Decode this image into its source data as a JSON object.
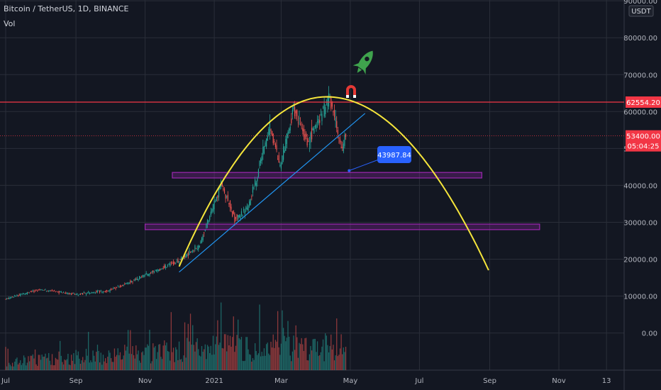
{
  "header": {
    "symbol": "Bitcoin / TetherUS, 1D, BINANCE",
    "indicator": "Vol",
    "currency": "USDT"
  },
  "chart_data": {
    "type": "candlestick",
    "y_unit": "USDT",
    "y_tick_labels": [
      "90000.00",
      "80000.00",
      "70000.00",
      "60000.00",
      "50000.00",
      "40000.00",
      "30000.00",
      "20000.00",
      "10000.00",
      "0.00"
    ],
    "x_tick_labels": [
      "Jul",
      "Sep",
      "Nov",
      "2021",
      "Mar",
      "May",
      "Jul",
      "Sep",
      "Nov",
      "13"
    ],
    "grid": true,
    "price_path": [
      [
        "2020-07-01",
        9200
      ],
      [
        "2020-08-01",
        11800
      ],
      [
        "2020-09-01",
        10500
      ],
      [
        "2020-10-01",
        11500
      ],
      [
        "2020-11-01",
        15500
      ],
      [
        "2020-12-01",
        19500
      ],
      [
        "2020-12-20",
        24000
      ],
      [
        "2021-01-08",
        40500
      ],
      [
        "2021-01-20",
        31000
      ],
      [
        "2021-02-01",
        34000
      ],
      [
        "2021-02-20",
        56000
      ],
      [
        "2021-03-01",
        45000
      ],
      [
        "2021-03-13",
        61000
      ],
      [
        "2021-03-25",
        52000
      ],
      [
        "2021-04-14",
        63500
      ],
      [
        "2021-04-25",
        49000
      ],
      [
        "2021-04-27",
        53400
      ]
    ],
    "annotations": {
      "resistance_line": {
        "price": 62554.2,
        "label": "62554.20",
        "color": "#f23645"
      },
      "last_price": {
        "price": 53400.0,
        "label": "53400.00",
        "countdown": "05:04:25",
        "color": "#f23645"
      },
      "support_zones": [
        {
          "from": "2020-11-25",
          "to": "2021-08-25",
          "low": 42000,
          "high": 43500,
          "color": "#9c27b0"
        },
        {
          "from": "2020-11-01",
          "to": "2021-10-15",
          "low": 28000,
          "high": 29500,
          "color": "#9c27b0"
        }
      ],
      "parabola": {
        "color": "#f5e53b",
        "start": [
          "2020-12-01",
          18000
        ],
        "peak": [
          "2021-04-10",
          64000
        ],
        "end": [
          "2021-08-31",
          17000
        ]
      },
      "trendline": {
        "color": "#2196f3",
        "start": [
          "2020-12-01",
          16500
        ],
        "end": [
          "2021-05-14",
          59500
        ]
      },
      "price_callout": {
        "label": "43987.84",
        "at": [
          "2021-04-30",
          43987.84
        ],
        "color": "#2962ff"
      },
      "icons": [
        "rocket-icon",
        "magnet-icon"
      ]
    },
    "volume_colors": {
      "up": "#26a69a",
      "down": "#ef5350"
    }
  }
}
